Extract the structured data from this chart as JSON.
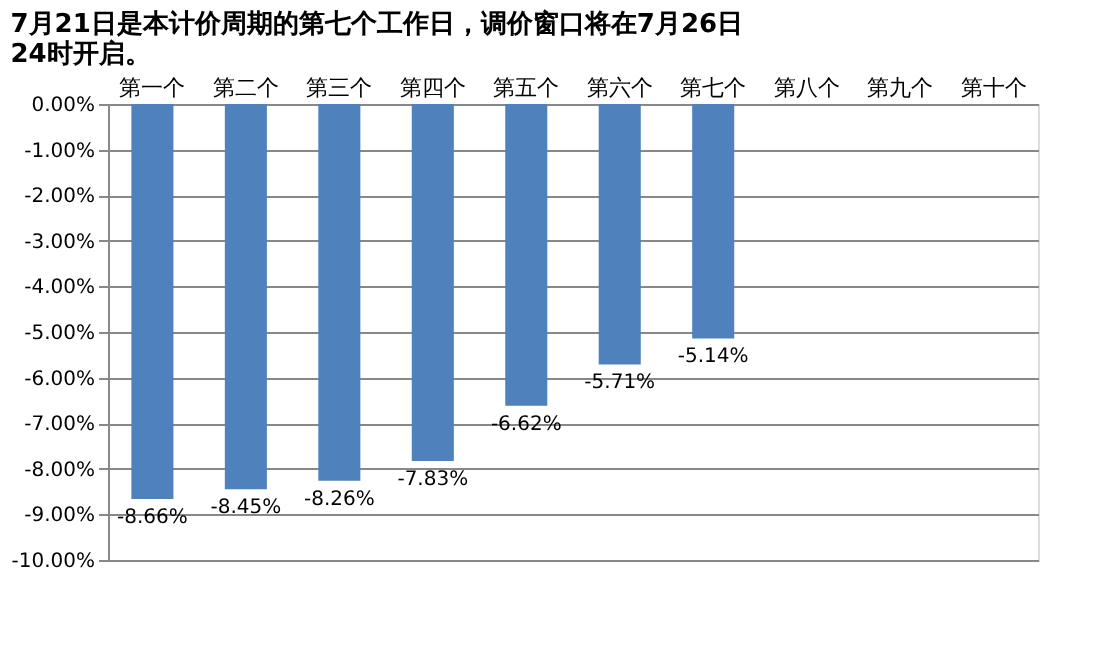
{
  "chart_data": {
    "type": "bar",
    "title": "7月21日是本计价周期的第七个工作日，调价窗口将在7月26日24时开启。",
    "categories": [
      "第一个",
      "第二个",
      "第三个",
      "第四个",
      "第五个",
      "第六个",
      "第七个",
      "第八个",
      "第九个",
      "第十个"
    ],
    "values": [
      -8.66,
      -8.45,
      -8.26,
      -7.83,
      -6.62,
      -5.71,
      -5.14,
      null,
      null,
      null
    ],
    "value_labels": [
      "-8.66%",
      "-8.45%",
      "-8.26%",
      "-7.83%",
      "-6.62%",
      "-5.71%",
      "-5.14%",
      null,
      null,
      null
    ],
    "color": "#4f81bd",
    "ylim": [
      -10,
      0
    ],
    "yticks": [
      {
        "value": 0,
        "label": "0.00%"
      },
      {
        "value": -1,
        "label": "-1.00%"
      },
      {
        "value": -2,
        "label": "-2.00%"
      },
      {
        "value": -3,
        "label": "-3.00%"
      },
      {
        "value": -4,
        "label": "-4.00%"
      },
      {
        "value": -5,
        "label": "-5.00%"
      },
      {
        "value": -6,
        "label": "-6.00%"
      },
      {
        "value": -7,
        "label": "-7.00%"
      },
      {
        "value": -8,
        "label": "-8.00%"
      },
      {
        "value": -9,
        "label": "-9.00%"
      },
      {
        "value": -10,
        "label": "-10.00%"
      }
    ],
    "grid": "y",
    "legend": false
  }
}
